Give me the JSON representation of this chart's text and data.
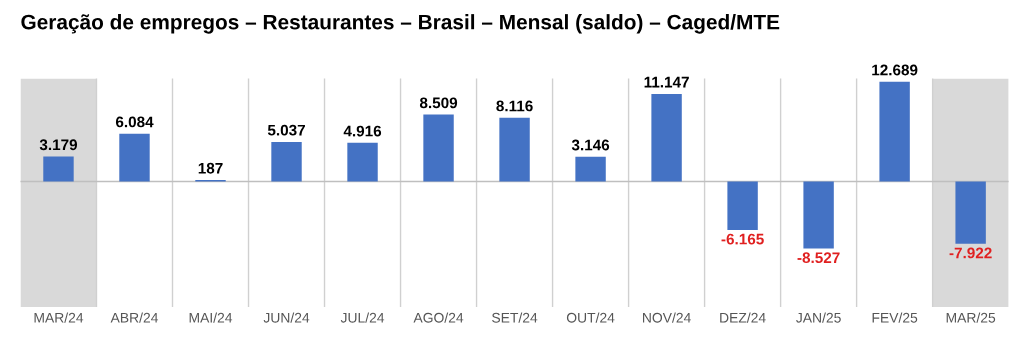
{
  "chart_data": {
    "type": "bar",
    "title": "Geração de empregos – Restaurantes – Brasil – Mensal (saldo) – Caged/MTE",
    "categories": [
      "MAR/24",
      "ABR/24",
      "MAI/24",
      "JUN/24",
      "JUL/24",
      "AGO/24",
      "SET/24",
      "OUT/24",
      "NOV/24",
      "DEZ/24",
      "JAN/25",
      "FEV/25",
      "MAR/25"
    ],
    "values": [
      3179,
      6084,
      187,
      5037,
      4916,
      8509,
      8116,
      3146,
      11147,
      -6165,
      -8527,
      12689,
      -7922
    ],
    "value_labels": [
      "3.179",
      "6.084",
      "187",
      "5.037",
      "4.916",
      "8.509",
      "8.116",
      "3.146",
      "11.147",
      "-6.165",
      "-8.527",
      "12.689",
      "-7.922"
    ],
    "color": "#4472c4",
    "bands": [
      {
        "axis": "x",
        "from": "MAR/24",
        "to": "MAR/24",
        "color": "#d9d9d9"
      },
      {
        "axis": "x",
        "from": "MAR/25",
        "to": "MAR/25",
        "color": "#d9d9d9"
      }
    ],
    "grid": "x"
  }
}
